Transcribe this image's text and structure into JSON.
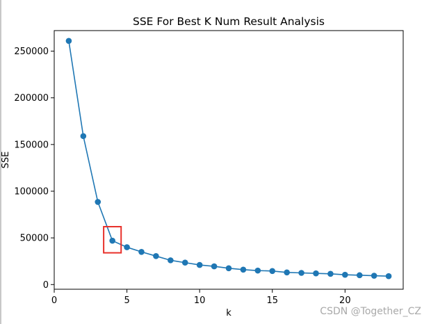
{
  "chart_data": {
    "type": "line",
    "title": "SSE For Best K Num Result Analysis",
    "xlabel": "k",
    "ylabel": "SSE",
    "xlim": [
      0,
      24
    ],
    "ylim": [
      -5000,
      272000
    ],
    "xticks": [
      0,
      5,
      10,
      15,
      20
    ],
    "yticks": [
      0,
      50000,
      100000,
      150000,
      200000,
      250000
    ],
    "grid": false,
    "series": [
      {
        "color": "#1f77b4",
        "marker": "circle",
        "x": [
          1,
          2,
          3,
          4,
          5,
          6,
          7,
          8,
          9,
          10,
          11,
          12,
          13,
          14,
          15,
          16,
          17,
          18,
          19,
          20,
          21,
          22,
          23
        ],
        "y": [
          261000,
          159000,
          88500,
          47000,
          40000,
          35000,
          30500,
          26000,
          23500,
          21000,
          19500,
          17500,
          16000,
          15000,
          14500,
          13000,
          12500,
          12000,
          11500,
          10500,
          10000,
          9500,
          9000
        ]
      }
    ],
    "annotations": [
      {
        "type": "rect",
        "color": "#e8302a",
        "x_range": [
          3.4,
          4.6
        ],
        "y_range": [
          34000,
          62000
        ]
      }
    ]
  },
  "watermark": "CSDN @Together_CZ"
}
